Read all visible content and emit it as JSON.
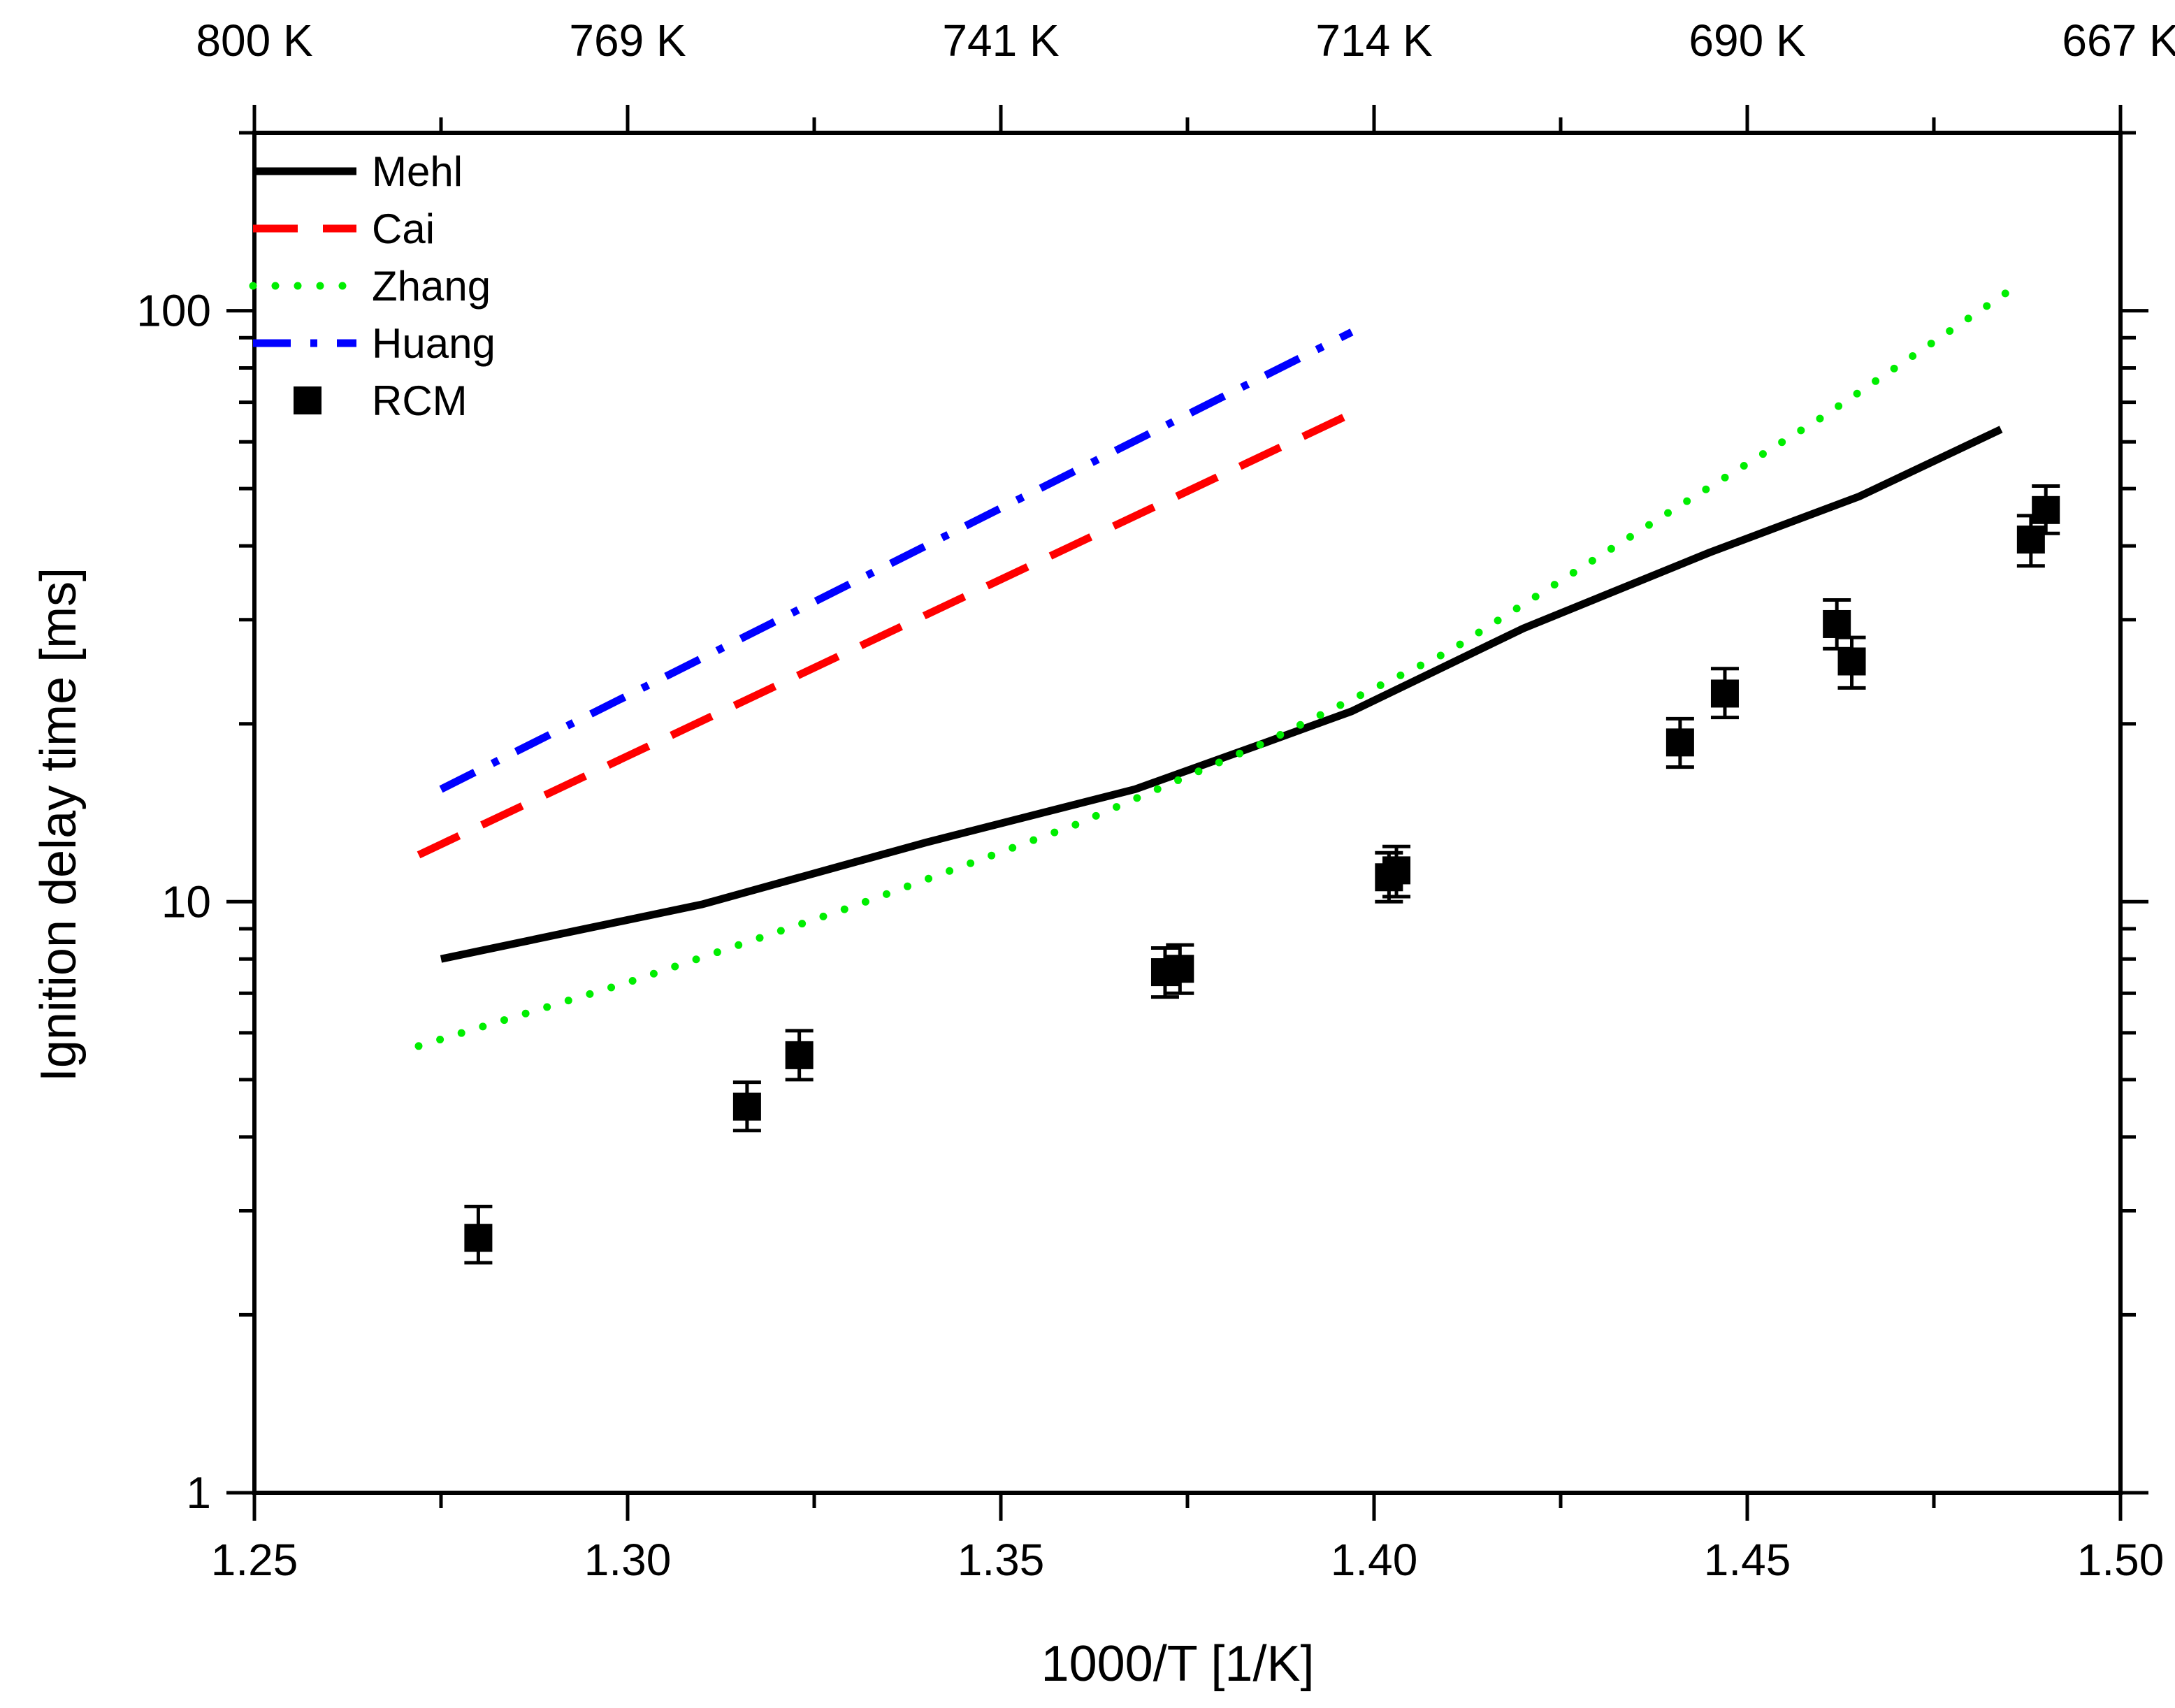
{
  "chart_data": {
    "type": "line",
    "title": "",
    "xlabel": "1000/T [1/K]",
    "ylabel": "Ignition delay time [ms]",
    "xlim": [
      1.25,
      1.5
    ],
    "ylim": [
      1,
      200
    ],
    "yscale": "log",
    "x_ticks": [
      1.25,
      1.3,
      1.35,
      1.4,
      1.45,
      1.5
    ],
    "x_tick_labels": [
      "1.25",
      "1.30",
      "1.35",
      "1.40",
      "1.45",
      "1.50"
    ],
    "y_ticks": [
      1,
      10,
      100
    ],
    "y_tick_labels": [
      "1",
      "10",
      "100"
    ],
    "top_axis": {
      "ticks": [
        1.25,
        1.3,
        1.35,
        1.4,
        1.45,
        1.5
      ],
      "labels": [
        "800 K",
        "769 K",
        "741 K",
        "714 K",
        "690 K",
        "667 K"
      ]
    },
    "legend_position": "top-left",
    "series": [
      {
        "name": "Mehl",
        "style": "solid",
        "color": "#000000",
        "x": [
          1.275,
          1.31,
          1.34,
          1.368,
          1.385,
          1.397,
          1.42,
          1.445,
          1.465,
          1.484
        ],
        "y": [
          8.0,
          9.9,
          12.6,
          15.5,
          18.5,
          21.0,
          29,
          39,
          48.5,
          63
        ]
      },
      {
        "name": "Cai",
        "style": "dashed",
        "color": "#ff0000",
        "x": [
          1.272,
          1.397
        ],
        "y": [
          12.0,
          67
        ]
      },
      {
        "name": "Zhang",
        "style": "dotted",
        "color": "#00ee00",
        "x": [
          1.272,
          1.3,
          1.33,
          1.36,
          1.385,
          1.41,
          1.44,
          1.46,
          1.486
        ],
        "y": [
          5.7,
          7.3,
          9.8,
          13.5,
          18.5,
          26.5,
          46,
          66,
          110
        ]
      },
      {
        "name": "Huang",
        "style": "dashdot",
        "color": "#0000ff",
        "x": [
          1.275,
          1.397
        ],
        "y": [
          15.5,
          92
        ]
      },
      {
        "name": "RCM",
        "style": "marker",
        "color": "#000000",
        "x": [
          1.28,
          1.316,
          1.323,
          1.372,
          1.374,
          1.402,
          1.403,
          1.441,
          1.447,
          1.462,
          1.464,
          1.488,
          1.49
        ],
        "y": [
          2.7,
          4.5,
          5.5,
          7.6,
          7.7,
          11.0,
          11.3,
          18.6,
          22.5,
          29.5,
          25.5,
          41,
          46
        ],
        "err_low": [
          2.45,
          4.1,
          5.0,
          6.9,
          7.0,
          10.0,
          10.2,
          16.9,
          20.5,
          26.8,
          23.0,
          37,
          42
        ],
        "err_high": [
          3.05,
          4.95,
          6.05,
          8.35,
          8.45,
          12.1,
          12.4,
          20.4,
          24.8,
          32.4,
          28.0,
          45,
          50.5
        ]
      }
    ]
  }
}
